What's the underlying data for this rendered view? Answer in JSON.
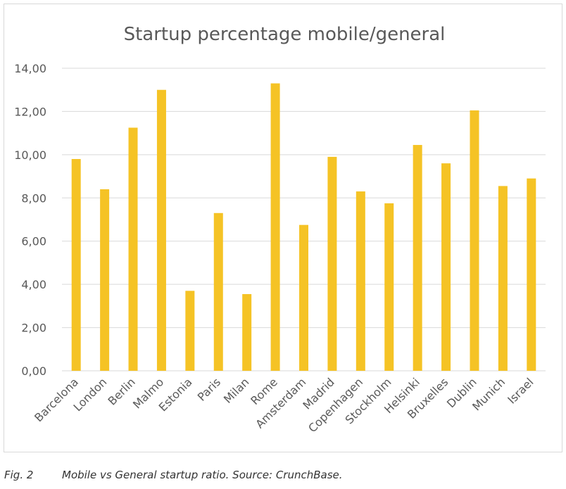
{
  "chart_data": {
    "type": "bar",
    "title": "Startup percentage mobile/general",
    "xlabel": "",
    "ylabel": "",
    "ylim": [
      0,
      14
    ],
    "yticks": [
      "0,00",
      "2,00",
      "4,00",
      "6,00",
      "8,00",
      "10,00",
      "12,00",
      "14,00"
    ],
    "grid": true,
    "legend": "none",
    "bar_color": "#F5C325",
    "categories": [
      "Barcelona",
      "London",
      "Berlin",
      "Malmo",
      "Estonia",
      "Paris",
      "Milan",
      "Rome",
      "Amsterdam",
      "Madrid",
      "Copenhagen",
      "Stockholm",
      "Helsinki",
      "Bruxelles",
      "Dublin",
      "Munich",
      "Israel"
    ],
    "values": [
      9.8,
      8.4,
      11.25,
      13.0,
      3.7,
      7.3,
      3.55,
      13.3,
      6.75,
      9.9,
      8.3,
      7.75,
      10.45,
      9.6,
      12.05,
      8.55,
      8.9
    ]
  },
  "caption": {
    "fig": "Fig. 2",
    "text": "Mobile vs General startup ratio. Source: CrunchBase."
  }
}
